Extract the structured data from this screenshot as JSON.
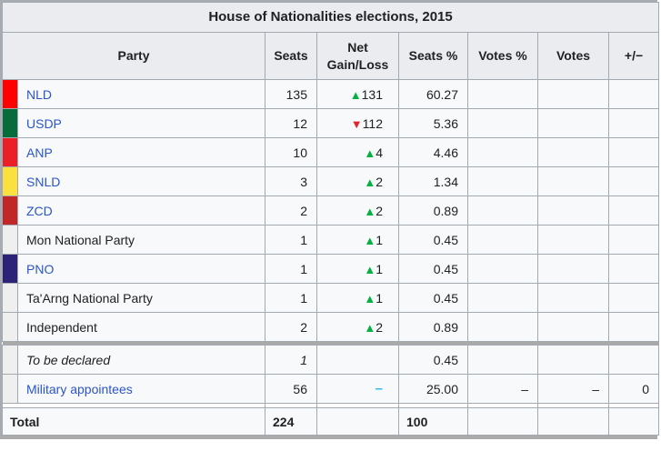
{
  "title": "House of Nationalities elections, 2015",
  "columns": [
    "Party",
    "Seats",
    "Net Gain/Loss",
    "Seats %",
    "Votes %",
    "Votes",
    "+/−"
  ],
  "colors": {
    "link": "#2b55c8",
    "gain_up": "#00b140",
    "gain_down": "#e6232a",
    "gain_steady": "#2fb9e9",
    "header_bg": "#eaecf0",
    "cell_bg": "#f8f9fa",
    "border": "#a2a9b1",
    "default_swatch": "#efefef"
  },
  "rows": [
    {
      "party": "NLD",
      "swatch": "#ff0000",
      "link": true,
      "italic": false,
      "sep_before": false,
      "seats": "135",
      "gain_dir": "up",
      "gain_symbol": "▲",
      "gain_value": "131",
      "seats_pct": "60.27",
      "votes_pct": "",
      "votes": "",
      "pm": ""
    },
    {
      "party": "USDP",
      "swatch": "#066c39",
      "link": true,
      "italic": false,
      "sep_before": false,
      "seats": "12",
      "gain_dir": "down",
      "gain_symbol": "▼",
      "gain_value": "112",
      "seats_pct": "5.36",
      "votes_pct": "",
      "votes": "",
      "pm": ""
    },
    {
      "party": "ANP",
      "swatch": "#eb2026",
      "link": true,
      "italic": false,
      "sep_before": false,
      "seats": "10",
      "gain_dir": "up",
      "gain_symbol": "▲",
      "gain_value": "4",
      "seats_pct": "4.46",
      "votes_pct": "",
      "votes": "",
      "pm": ""
    },
    {
      "party": "SNLD",
      "swatch": "#fce13e",
      "link": true,
      "italic": false,
      "sep_before": false,
      "seats": "3",
      "gain_dir": "up",
      "gain_symbol": "▲",
      "gain_value": "2",
      "seats_pct": "1.34",
      "votes_pct": "",
      "votes": "",
      "pm": ""
    },
    {
      "party": "ZCD",
      "swatch": "#c22728",
      "link": true,
      "italic": false,
      "sep_before": false,
      "seats": "2",
      "gain_dir": "up",
      "gain_symbol": "▲",
      "gain_value": "2",
      "seats_pct": "0.89",
      "votes_pct": "",
      "votes": "",
      "pm": ""
    },
    {
      "party": "Mon National Party",
      "swatch": "#efefef",
      "link": false,
      "italic": false,
      "sep_before": false,
      "seats": "1",
      "gain_dir": "up",
      "gain_symbol": "▲",
      "gain_value": "1",
      "seats_pct": "0.45",
      "votes_pct": "",
      "votes": "",
      "pm": ""
    },
    {
      "party": "PNO",
      "swatch": "#2c2277",
      "link": true,
      "italic": false,
      "sep_before": false,
      "seats": "1",
      "gain_dir": "up",
      "gain_symbol": "▲",
      "gain_value": "1",
      "seats_pct": "0.45",
      "votes_pct": "",
      "votes": "",
      "pm": ""
    },
    {
      "party": "Ta'Arng National Party",
      "swatch": "#efefef",
      "link": false,
      "italic": false,
      "sep_before": false,
      "seats": "1",
      "gain_dir": "up",
      "gain_symbol": "▲",
      "gain_value": "1",
      "seats_pct": "0.45",
      "votes_pct": "",
      "votes": "",
      "pm": ""
    },
    {
      "party": "Independent",
      "swatch": "#efefef",
      "link": false,
      "italic": false,
      "sep_before": false,
      "seats": "2",
      "gain_dir": "up",
      "gain_symbol": "▲",
      "gain_value": "2",
      "seats_pct": "0.89",
      "votes_pct": "",
      "votes": "",
      "pm": ""
    },
    {
      "party": "To be declared",
      "swatch": "#efefef",
      "link": false,
      "italic": true,
      "sep_before": true,
      "seats": "1",
      "gain_dir": "",
      "gain_symbol": "",
      "gain_value": "",
      "seats_pct": "0.45",
      "votes_pct": "",
      "votes": "",
      "pm": ""
    },
    {
      "party": "Military appointees",
      "swatch": "#efefef",
      "link": true,
      "italic": false,
      "sep_before": false,
      "seats": "56",
      "gain_dir": "steady",
      "gain_symbol": "–",
      "gain_value": "",
      "seats_pct": "25.00",
      "votes_pct": "–",
      "votes": "–",
      "pm": "0"
    }
  ],
  "total": {
    "label": "Total",
    "seats": "224",
    "gain": "",
    "seats_pct": "100",
    "votes_pct": "",
    "votes": "",
    "pm": ""
  }
}
